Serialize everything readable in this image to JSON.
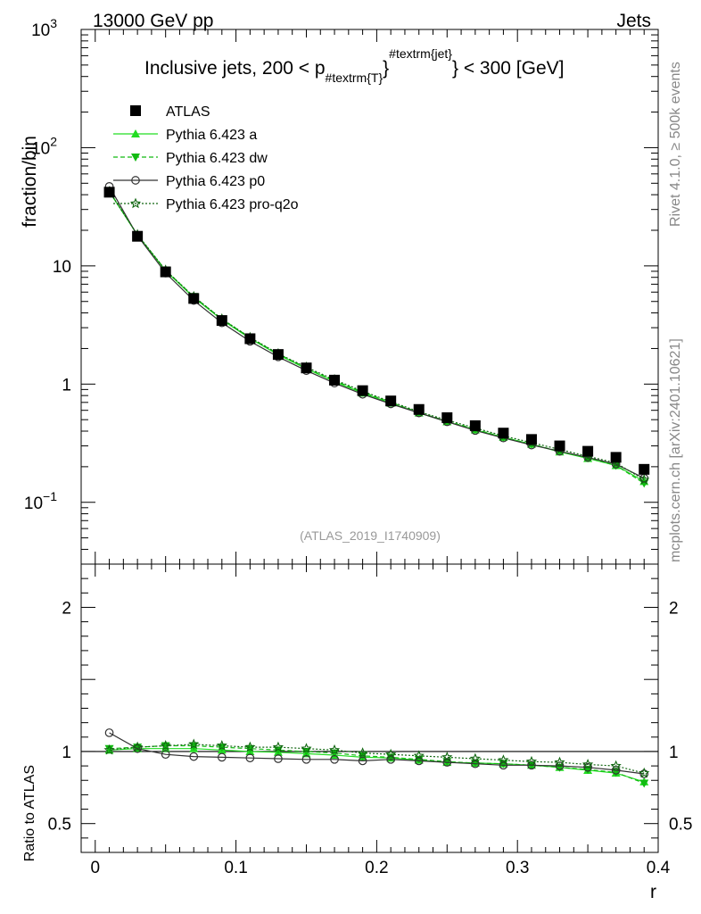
{
  "header": {
    "left": "13000 GeV pp",
    "right": "Jets"
  },
  "side_labels": {
    "rivet": "Rivet 4.1.0, ≥ 500k events",
    "mcplots": "mcplots.cern.ch [arXiv:2401.10621]"
  },
  "chart_data": {
    "type": "line",
    "title": "Inclusive jets, 200 < p_#textrm{T}^#textrm{jet} < 300 [GeV]",
    "title_parts": {
      "prefix": "Inclusive jets, 200 < p",
      "sub": "#textrm{T}",
      "sup_brace": "}",
      "sup": "#textrm{jet}",
      "suffix": "} < 300 [GeV]"
    },
    "xlabel": "r",
    "ylabel": "fraction/bin",
    "ratio_ylabel": "Ratio to ATLAS",
    "watermark": "(ATLAS_2019_I1740909)",
    "xlim": [
      -0.01,
      0.4
    ],
    "ylim": [
      0.03,
      1000
    ],
    "yscale": "log",
    "ratio_ylim": [
      0.3,
      2.3
    ],
    "x_ticks": [
      0,
      0.1,
      0.2,
      0.3,
      0.4
    ],
    "x_tick_labels": [
      "0",
      "0.1",
      "0.2",
      "0.3",
      "0.4"
    ],
    "y_ticks": [
      0.1,
      1,
      10,
      100,
      1000
    ],
    "y_tick_labels": [
      {
        "base": "10",
        "exp": "−1"
      },
      {
        "base": "1",
        "exp": ""
      },
      {
        "base": "10",
        "exp": ""
      },
      {
        "base": "10",
        "exp": "2"
      },
      {
        "base": "10",
        "exp": "3"
      }
    ],
    "ratio_ticks": [
      0.5,
      1,
      2
    ],
    "ratio_tick_labels": [
      "0.5",
      "1",
      "2"
    ],
    "x": [
      0.01,
      0.03,
      0.05,
      0.07,
      0.09,
      0.11,
      0.13,
      0.15,
      0.17,
      0.19,
      0.21,
      0.23,
      0.25,
      0.27,
      0.29,
      0.31,
      0.33,
      0.35,
      0.37,
      0.39
    ],
    "series": [
      {
        "name": "ATLAS",
        "marker": "square",
        "color": "#000000",
        "line": "none",
        "values": [
          42,
          17.8,
          8.9,
          5.3,
          3.45,
          2.42,
          1.78,
          1.37,
          1.08,
          0.88,
          0.72,
          0.61,
          0.52,
          0.445,
          0.385,
          0.34,
          0.3,
          0.27,
          0.24,
          0.19
        ]
      },
      {
        "name": "Pythia 6.423 a",
        "marker": "triangle-up",
        "color": "#22dd22",
        "line": "solid",
        "values": [
          42.5,
          18.2,
          9.1,
          5.4,
          3.5,
          2.43,
          1.77,
          1.35,
          1.05,
          0.84,
          0.69,
          0.57,
          0.48,
          0.41,
          0.355,
          0.31,
          0.267,
          0.235,
          0.205,
          0.15
        ],
        "ratio": [
          1.01,
          1.02,
          1.02,
          1.02,
          1.01,
          1.0,
          0.995,
          0.985,
          0.975,
          0.96,
          0.955,
          0.94,
          0.925,
          0.92,
          0.915,
          0.905,
          0.89,
          0.87,
          0.85,
          0.79
        ]
      },
      {
        "name": "Pythia 6.423 dw",
        "marker": "triangle-down",
        "color": "#11bb11",
        "line": "dashed",
        "values": [
          42.8,
          18.3,
          9.2,
          5.5,
          3.55,
          2.47,
          1.8,
          1.37,
          1.07,
          0.855,
          0.7,
          0.575,
          0.485,
          0.415,
          0.355,
          0.31,
          0.27,
          0.237,
          0.205,
          0.145
        ],
        "ratio": [
          1.02,
          1.03,
          1.04,
          1.04,
          1.03,
          1.02,
          1.01,
          1.0,
          0.99,
          0.97,
          0.96,
          0.945,
          0.93,
          0.92,
          0.915,
          0.905,
          0.89,
          0.875,
          0.855,
          0.78
        ]
      },
      {
        "name": "Pythia 6.423 p0",
        "marker": "circle-open",
        "color": "#333333",
        "line": "solid",
        "values": [
          47,
          18.0,
          8.7,
          5.1,
          3.3,
          2.3,
          1.7,
          1.3,
          1.02,
          0.82,
          0.68,
          0.57,
          0.48,
          0.405,
          0.35,
          0.305,
          0.27,
          0.24,
          0.21,
          0.16
        ],
        "ratio": [
          1.13,
          1.02,
          0.98,
          0.965,
          0.96,
          0.955,
          0.95,
          0.945,
          0.945,
          0.935,
          0.945,
          0.935,
          0.925,
          0.915,
          0.905,
          0.905,
          0.9,
          0.89,
          0.87,
          0.845
        ]
      },
      {
        "name": "Pythia 6.423 pro-q2o",
        "marker": "star-open",
        "color": "#116611",
        "line": "dotted",
        "values": [
          42.5,
          18.4,
          9.2,
          5.5,
          3.56,
          2.48,
          1.81,
          1.39,
          1.09,
          0.87,
          0.71,
          0.585,
          0.495,
          0.425,
          0.365,
          0.32,
          0.28,
          0.245,
          0.215,
          0.155
        ],
        "ratio": [
          1.01,
          1.03,
          1.04,
          1.05,
          1.04,
          1.03,
          1.03,
          1.02,
          1.01,
          0.99,
          0.98,
          0.97,
          0.96,
          0.95,
          0.94,
          0.93,
          0.925,
          0.91,
          0.9,
          0.85
        ]
      }
    ]
  }
}
